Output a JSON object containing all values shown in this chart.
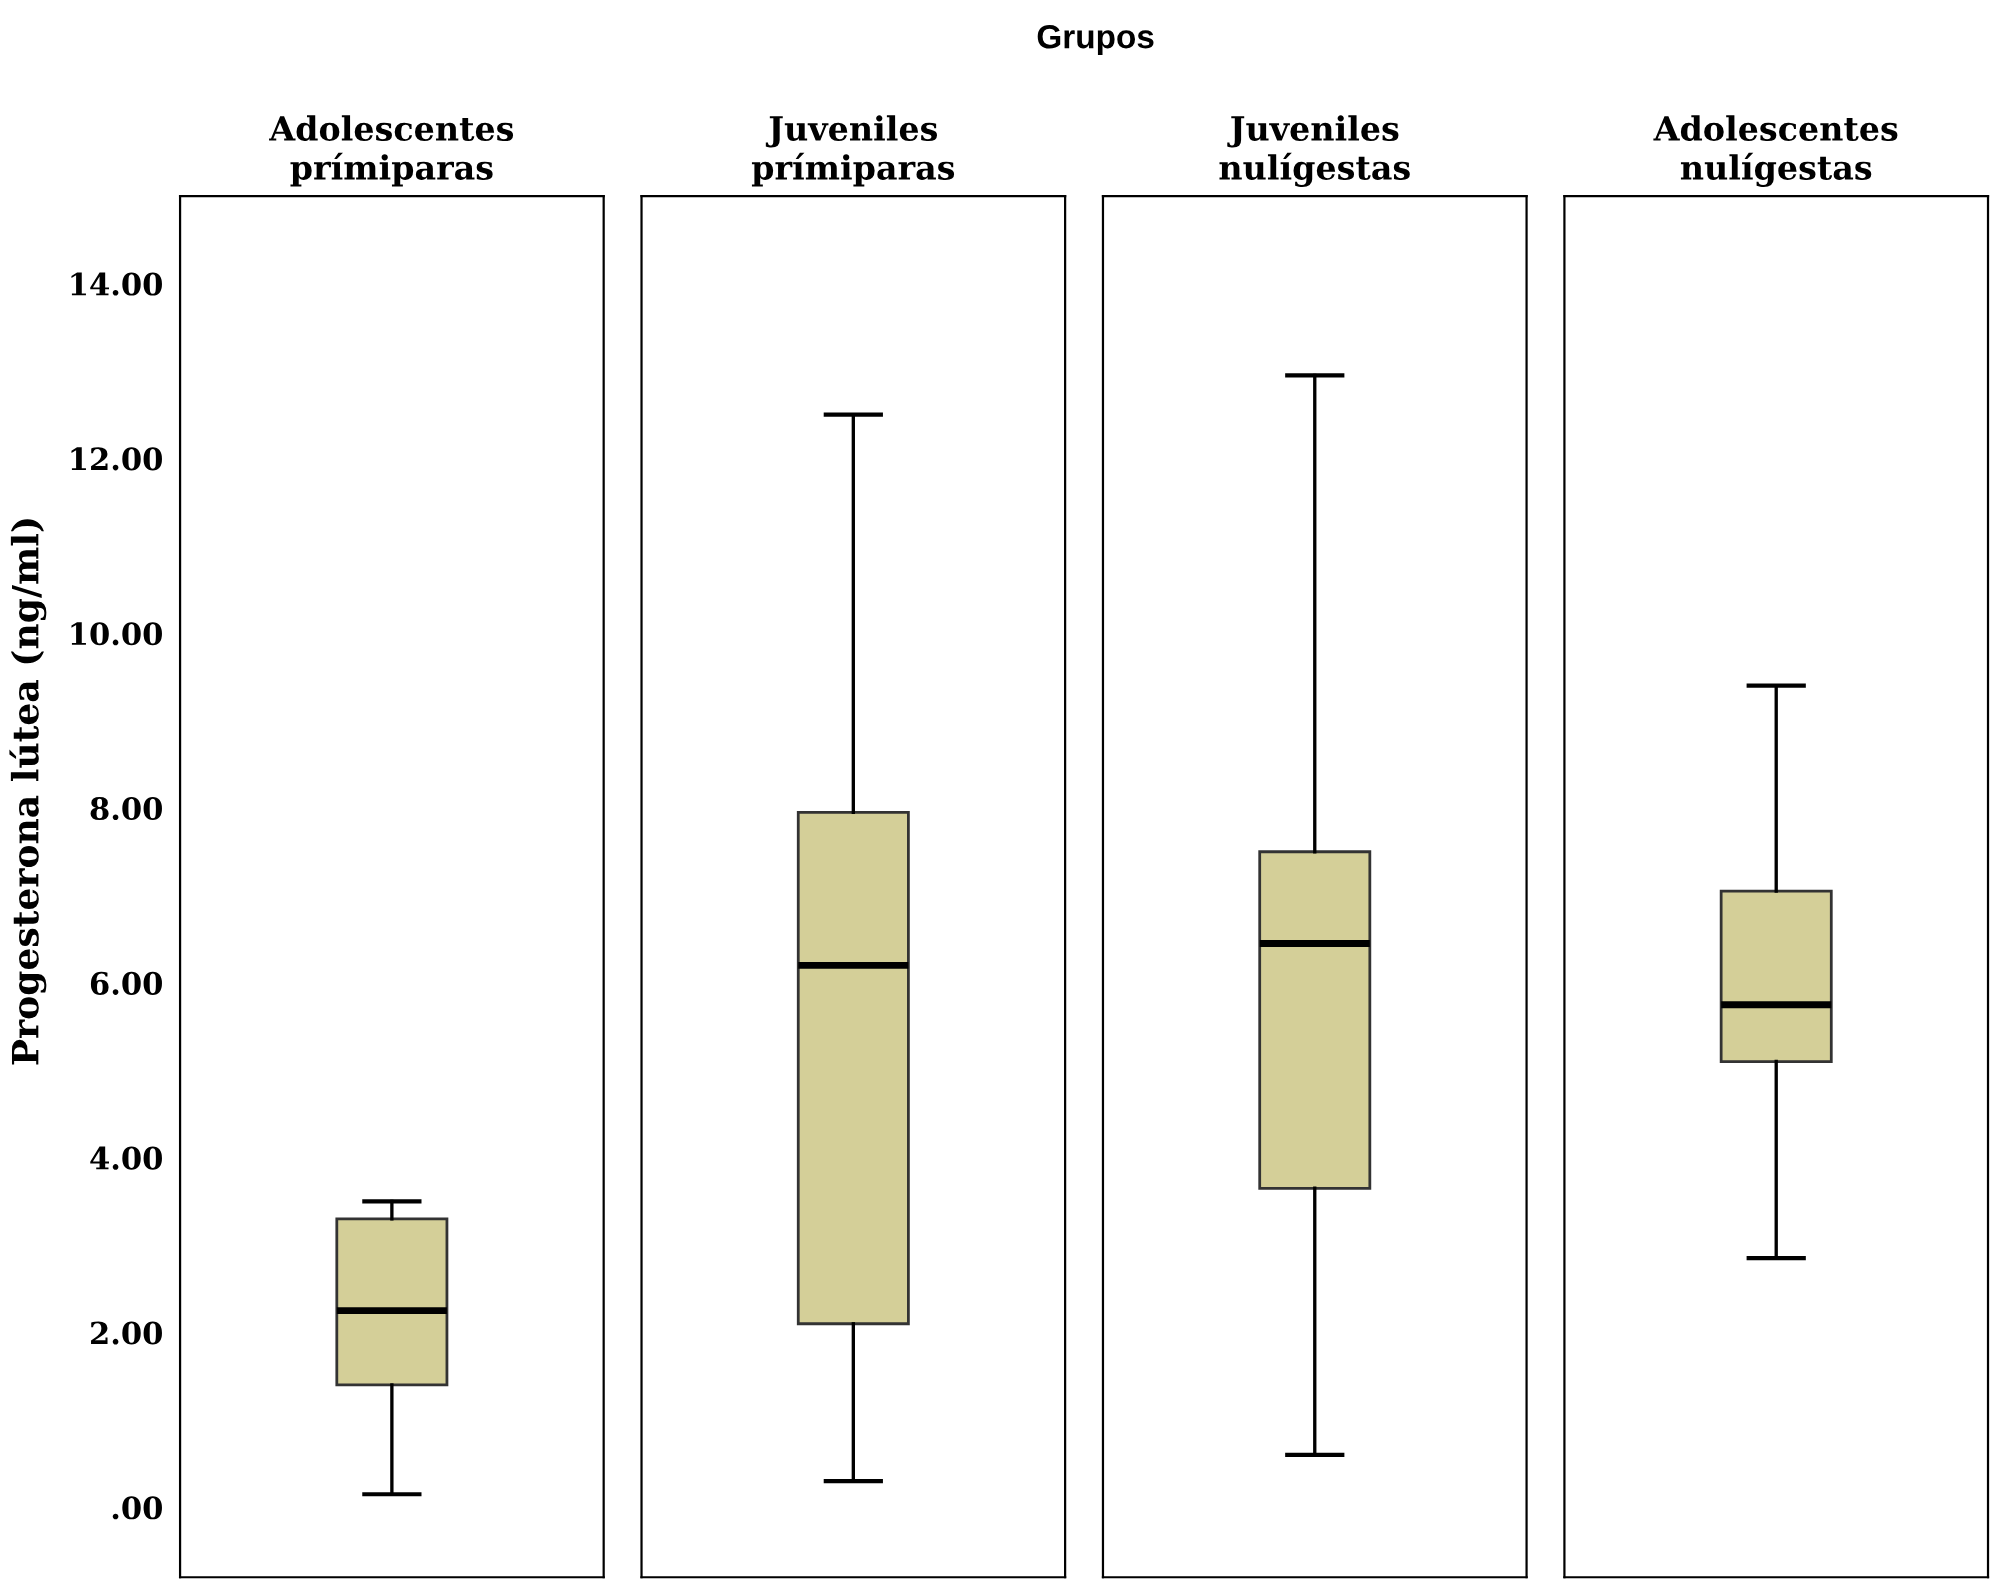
{
  "chart_data": {
    "type": "box",
    "title": "Grupos",
    "ylabel": "Progesterona lútea (ng/ml)",
    "categories": [
      "Adolescentes\nprímiparas",
      "Juveniles\nprímiparas",
      "Juveniles\nnulígestas",
      "Adolescentes\nnulígestas"
    ],
    "boxes": [
      {
        "low": 0.15,
        "q1": 1.4,
        "median": 2.25,
        "q3": 3.3,
        "high": 3.5
      },
      {
        "low": 0.3,
        "q1": 2.1,
        "median": 6.2,
        "q3": 7.95,
        "high": 12.5
      },
      {
        "low": 0.6,
        "q1": 3.65,
        "median": 6.45,
        "q3": 7.5,
        "high": 12.95
      },
      {
        "low": 2.85,
        "q1": 5.1,
        "median": 5.75,
        "q3": 7.05,
        "high": 9.4
      }
    ],
    "color": "#d4cf98",
    "ylim": [
      -0.8,
      15.0
    ],
    "yticks": [
      {
        "value": 0,
        "label": ".00"
      },
      {
        "value": 2,
        "label": "2.00"
      },
      {
        "value": 4,
        "label": "4.00"
      },
      {
        "value": 6,
        "label": "6.00"
      },
      {
        "value": 8,
        "label": "8.00"
      },
      {
        "value": 10,
        "label": "10.00"
      },
      {
        "value": 12,
        "label": "12.00"
      },
      {
        "value": 14,
        "label": "14.00"
      }
    ],
    "grid": false
  }
}
